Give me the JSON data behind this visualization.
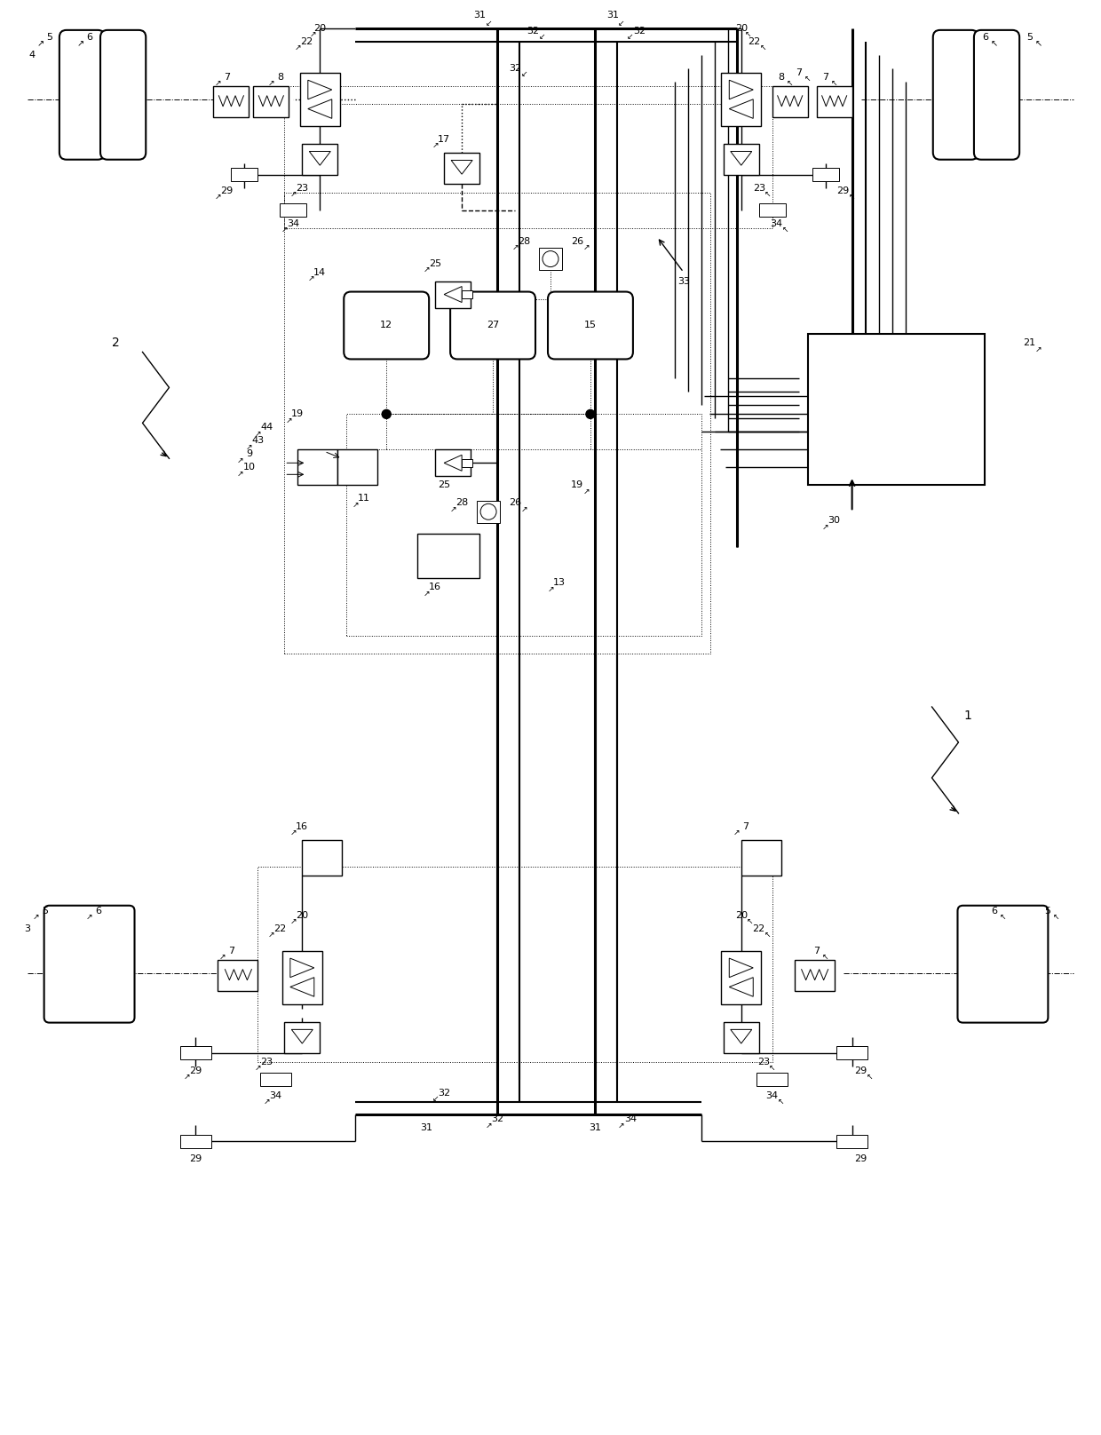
{
  "bg": "#FFFFFF",
  "lc": "#000000",
  "fw": 12.4,
  "fh": 16.16,
  "dpi": 100
}
